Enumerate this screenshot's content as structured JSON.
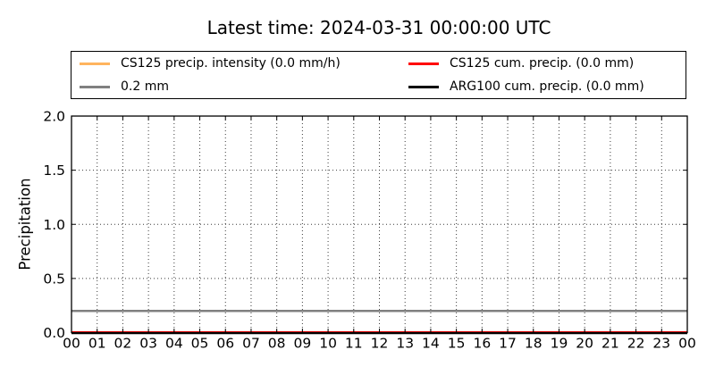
{
  "chart_data": {
    "type": "line",
    "title": "Latest time: 2024-03-31 00:00:00 UTC",
    "xlabel": "",
    "ylabel": "Precipitation",
    "ylim": [
      0.0,
      2.0
    ],
    "yticks": [
      0.0,
      0.5,
      1.0,
      1.5,
      2.0
    ],
    "ytick_labels": [
      "0.0",
      "0.5",
      "1.0",
      "1.5",
      "2.0"
    ],
    "xtick_labels": [
      "00",
      "01",
      "02",
      "03",
      "04",
      "05",
      "06",
      "07",
      "08",
      "09",
      "10",
      "11",
      "12",
      "13",
      "14",
      "15",
      "16",
      "17",
      "18",
      "19",
      "20",
      "21",
      "22",
      "23",
      "00"
    ],
    "x_axis_unit": "hour of day (UTC)",
    "grid": "dotted",
    "legend_position": "top, expanded, 2 columns",
    "series": [
      {
        "name": "CS125 precip. intensity (0.0 mm/h)",
        "color": "#ffb45e",
        "y_constant": 0.0
      },
      {
        "name": "0.2 mm",
        "color": "#808080",
        "y_constant": 0.2,
        "role": "reference-line"
      },
      {
        "name": "CS125 cum. precip. (0.0 mm)",
        "color": "#ff0000",
        "y_constant": 0.0
      },
      {
        "name": "ARG100 cum. precip. (0.0 mm)",
        "color": "#000000",
        "y_constant": 0.0
      }
    ]
  }
}
